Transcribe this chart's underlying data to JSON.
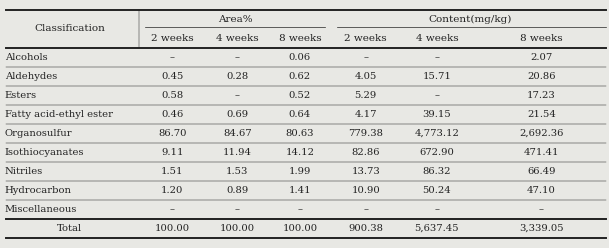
{
  "classification_label": "Classification",
  "area_label": "Area%",
  "content_label": "Content(mg/kg)",
  "sub_headers": [
    "2 weeks",
    "4 weeks",
    "8 weeks",
    "2 weeks",
    "4 weeks",
    "8 weeks"
  ],
  "rows": [
    {
      "label": "Alcohols",
      "values": [
        "–",
        "–",
        "0.06",
        "–",
        "–",
        "2.07"
      ]
    },
    {
      "label": "Aldehydes",
      "values": [
        "0.45",
        "0.28",
        "0.62",
        "4.05",
        "15.71",
        "20.86"
      ]
    },
    {
      "label": "Esters",
      "values": [
        "0.58",
        "–",
        "0.52",
        "5.29",
        "–",
        "17.23"
      ]
    },
    {
      "label": "Fatty acid-ethyl ester",
      "values": [
        "0.46",
        "0.69",
        "0.64",
        "4.17",
        "39.15",
        "21.54"
      ]
    },
    {
      "label": "Organosulfur",
      "values": [
        "86.70",
        "84.67",
        "80.63",
        "779.38",
        "4,773.12",
        "2,692.36"
      ]
    },
    {
      "label": "Isothiocyanates",
      "values": [
        "9.11",
        "11.94",
        "14.12",
        "82.86",
        "672.90",
        "471.41"
      ]
    },
    {
      "label": "Nitriles",
      "values": [
        "1.51",
        "1.53",
        "1.99",
        "13.73",
        "86.32",
        "66.49"
      ]
    },
    {
      "label": "Hydrocarbon",
      "values": [
        "1.20",
        "0.89",
        "1.41",
        "10.90",
        "50.24",
        "47.10"
      ]
    },
    {
      "label": "Miscellaneous",
      "values": [
        "–",
        "–",
        "–",
        "–",
        "–",
        "–"
      ]
    }
  ],
  "total_row": {
    "label": "Total",
    "values": [
      "100.00",
      "100.00",
      "100.00",
      "900.38",
      "5,637.45",
      "3,339.05"
    ]
  },
  "bg_color": "#e8e8e4",
  "line_color": "#222222",
  "font_size": 7.2,
  "header_font_size": 7.5,
  "fig_width": 6.09,
  "fig_height": 2.48,
  "dpi": 100,
  "col_boundaries": [
    0.0,
    0.228,
    0.338,
    0.441,
    0.544,
    0.657,
    0.778,
    1.0
  ]
}
